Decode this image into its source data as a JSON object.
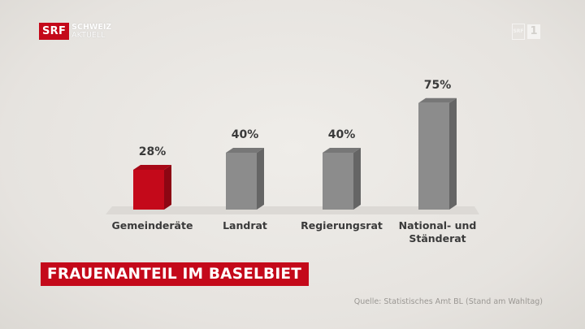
{
  "logo": {
    "badge": "SRF",
    "line1": "SCHWEIZ",
    "line2": "AKTUELL"
  },
  "channel_bug": {
    "box": "SRF",
    "number": "1"
  },
  "title": "FRAUENANTEIL IM BASELBIET",
  "source": "Quelle: Statistisches Amt BL (Stand am Wahltag)",
  "colors": {
    "highlight": "#c4091a",
    "bar": "#8c8c8c",
    "accent": "#c4091a"
  },
  "chart_data": {
    "type": "bar",
    "title": "FRAUENANTEIL IM BASELBIET",
    "categories": [
      [
        "Gemeinderäte"
      ],
      [
        "Landrat"
      ],
      [
        "Regierungsrat"
      ],
      [
        "National- und",
        "Ständerat"
      ]
    ],
    "values": [
      28,
      40,
      40,
      75
    ],
    "value_labels": [
      "28%",
      "40%",
      "40%",
      "75%"
    ],
    "highlight_index": 0,
    "ylim": [
      0,
      100
    ],
    "grid": false,
    "legend": "none"
  }
}
